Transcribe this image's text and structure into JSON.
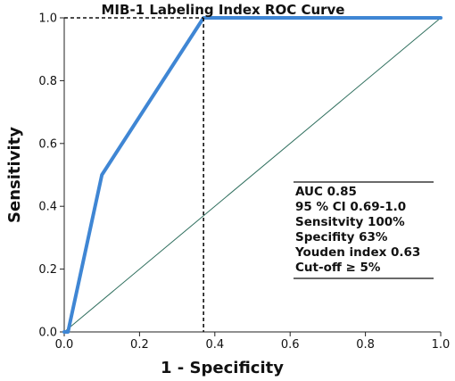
{
  "chart_data": {
    "type": "line",
    "title": "MIB-1 Labeling Index ROC Curve",
    "xlabel": "1 - Specificity",
    "ylabel": "Sensitivity",
    "xlim": [
      0,
      1
    ],
    "ylim": [
      0,
      1
    ],
    "x_ticks": [
      "0.0",
      "0.2",
      "0.4",
      "0.6",
      "0.8",
      "1.0"
    ],
    "y_ticks": [
      "0.0",
      "0.2",
      "0.4",
      "0.6",
      "0.8",
      "1.0"
    ],
    "series": [
      {
        "role": "roc-curve",
        "color": "#3f86d4",
        "points": [
          [
            0,
            0
          ],
          [
            0.01,
            0
          ],
          [
            0.1,
            0.5
          ],
          [
            0.37,
            1.0
          ],
          [
            1.0,
            1.0
          ]
        ]
      },
      {
        "role": "reference-diagonal",
        "color": "#2f6f5e",
        "points": [
          [
            0,
            0
          ],
          [
            1,
            1
          ]
        ]
      }
    ],
    "cutoff_marker": {
      "x": 0.37,
      "y": 1.0,
      "style": "dashed"
    },
    "stats_box": {
      "location": "lower-right",
      "lines": [
        "AUC 0.85",
        "95 % CI 0.69-1.0",
        "Sensitvity 100%",
        "Specifity 63%",
        "Youden index 0.63",
        "Cut-off ≥ 5%"
      ]
    },
    "grid": false
  }
}
